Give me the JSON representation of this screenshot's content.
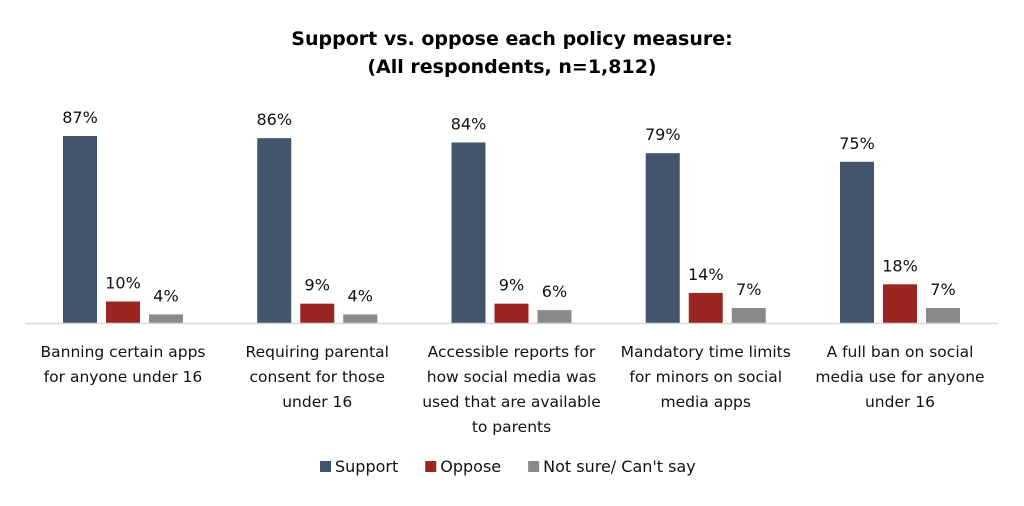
{
  "chart_data": {
    "type": "bar",
    "title": "Support vs. oppose each policy measure:",
    "subtitle": "(All respondents, n=1,812)",
    "xlabel": "",
    "ylabel": "",
    "ylim": [
      0,
      100
    ],
    "grid": false,
    "legend_position": "bottom",
    "value_suffix": "%",
    "categories": [
      [
        "Banning certain apps",
        "for anyone under 16"
      ],
      [
        "Requiring parental",
        "consent for those",
        "under 16"
      ],
      [
        "Accessible reports for",
        "how social media was",
        "used that are available",
        "to parents"
      ],
      [
        "Mandatory time limits",
        "for minors on social",
        "media apps"
      ],
      [
        "A full ban on social",
        "media use for anyone",
        "under 16"
      ]
    ],
    "series": [
      {
        "name": "Support",
        "color": "#44546a",
        "values": [
          87,
          86,
          84,
          79,
          75
        ]
      },
      {
        "name": "Oppose",
        "color": "#9b2520",
        "values": [
          10,
          9,
          9,
          14,
          18
        ]
      },
      {
        "name": "Not sure/ Can't say",
        "color": "#8a8a8a",
        "values": [
          4,
          4,
          6,
          7,
          7
        ]
      }
    ]
  }
}
